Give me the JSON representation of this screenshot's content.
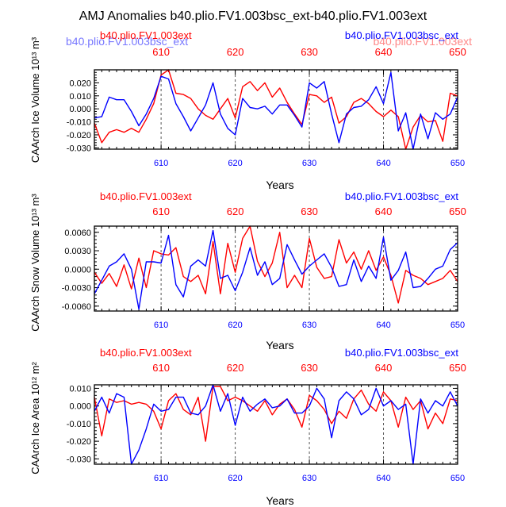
{
  "figure": {
    "title": "AMJ Anomalies b40.plio.FV1.003bsc_ext-b40.plio.FV1.003ext",
    "xlabel": "Years",
    "colors": {
      "series_a": "#ff0000",
      "series_b": "#0000ff",
      "axis": "#000000"
    }
  },
  "panel_0": {
    "ylabel": "CAArch Ice Volume 10¹³ m³",
    "legend_left": "b40.plio.FV1.003ext",
    "legend_right": "b40.plio.FV1.003bsc_ext",
    "ghost_left": "b40.plio.FV1.003bsc_ext",
    "ghost_right": "b40.plio.FV1.003ext"
  },
  "panel_1": {
    "ylabel": "CAArch Snow Volume 10¹³ m³",
    "legend_left": "b40.plio.FV1.003ext",
    "legend_right": "b40.plio.FV1.003bsc_ext"
  },
  "panel_2": {
    "ylabel": "CAArch Ice Area 10¹² m²",
    "legend_left": "b40.plio.FV1.003ext",
    "legend_right": "b40.plio.FV1.003bsc_ext"
  },
  "chart_data": [
    {
      "type": "line",
      "title": "AMJ Anomalies b40.plio.FV1.003bsc_ext-b40.plio.FV1.003ext",
      "xlabel": "Years",
      "ylabel": "CAArch Ice Volume 10¹³ m³",
      "xlim": [
        601,
        650
      ],
      "ylim": [
        -0.031,
        0.03
      ],
      "xticks": [
        610,
        620,
        630,
        640,
        650
      ],
      "yticks": [
        -0.03,
        -0.02,
        -0.01,
        0.0,
        0.01,
        0.02
      ],
      "ytick_labels": [
        "-0.030",
        "-0.020",
        "-0.010",
        "0.000",
        "0.010",
        "0.020"
      ],
      "vlines": [
        610,
        620,
        630,
        640
      ],
      "x": [
        601,
        602,
        603,
        604,
        605,
        606,
        607,
        608,
        609,
        610,
        611,
        612,
        613,
        614,
        615,
        616,
        617,
        618,
        619,
        620,
        621,
        622,
        623,
        624,
        625,
        626,
        627,
        628,
        629,
        630,
        631,
        632,
        633,
        634,
        635,
        636,
        637,
        638,
        639,
        640,
        641,
        642,
        643,
        644,
        645,
        646,
        647,
        648,
        649,
        650
      ],
      "series": [
        {
          "name": "b40.plio.FV1.003ext",
          "color": "#ff0000",
          "values": [
            -0.011,
            -0.026,
            -0.018,
            -0.016,
            -0.018,
            -0.015,
            -0.018,
            -0.008,
            0.004,
            0.026,
            0.03,
            0.012,
            0.011,
            0.008,
            0.0,
            -0.005,
            -0.008,
            0.0,
            0.008,
            -0.007,
            0.017,
            0.021,
            0.014,
            0.02,
            0.009,
            0.016,
            0.005,
            -0.004,
            -0.012,
            0.011,
            0.01,
            0.005,
            0.009,
            -0.011,
            -0.006,
            0.005,
            0.008,
            0.004,
            -0.002,
            -0.006,
            -0.001,
            -0.006,
            -0.031,
            -0.014,
            -0.005,
            -0.01,
            -0.009,
            -0.025,
            0.012,
            0.01
          ]
        },
        {
          "name": "b40.plio.FV1.003bsc_ext",
          "color": "#0000ff",
          "values": [
            -0.007,
            -0.006,
            0.009,
            0.007,
            0.007,
            -0.002,
            -0.013,
            -0.004,
            0.008,
            0.025,
            0.023,
            0.004,
            -0.006,
            -0.017,
            -0.007,
            0.003,
            0.02,
            -0.004,
            -0.015,
            -0.02,
            0.008,
            0.001,
            0.0,
            0.002,
            -0.004,
            0.003,
            0.003,
            -0.005,
            -0.014,
            0.02,
            0.016,
            0.021,
            -0.004,
            -0.026,
            -0.004,
            0.001,
            0.002,
            0.007,
            0.017,
            0.004,
            0.028,
            -0.017,
            -0.003,
            -0.031,
            -0.004,
            -0.023,
            -0.003,
            -0.008,
            -0.004,
            0.009
          ]
        }
      ]
    },
    {
      "type": "line",
      "xlabel": "Years",
      "ylabel": "CAArch Snow Volume 10¹³ m³",
      "xlim": [
        601,
        650
      ],
      "ylim": [
        -0.0068,
        0.007
      ],
      "xticks": [
        610,
        620,
        630,
        640,
        650
      ],
      "yticks": [
        -0.006,
        -0.003,
        0.0,
        0.003,
        0.006
      ],
      "ytick_labels": [
        "-0.0060",
        "-0.0030",
        "0.0000",
        "0.0030",
        "0.0060"
      ],
      "vlines": [
        610,
        620,
        630,
        640
      ],
      "x": [
        601,
        602,
        603,
        604,
        605,
        606,
        607,
        608,
        609,
        610,
        611,
        612,
        613,
        614,
        615,
        616,
        617,
        618,
        619,
        620,
        621,
        622,
        623,
        624,
        625,
        626,
        627,
        628,
        629,
        630,
        631,
        632,
        633,
        634,
        635,
        636,
        637,
        638,
        639,
        640,
        641,
        642,
        643,
        644,
        645,
        646,
        647,
        648,
        649,
        650
      ],
      "series": [
        {
          "name": "b40.plio.FV1.003ext",
          "color": "#ff0000",
          "values": [
            -0.0005,
            -0.0023,
            -0.0007,
            -0.0028,
            0.0007,
            -0.0032,
            0.0018,
            -0.003,
            0.003,
            0.0025,
            0.0023,
            0.0035,
            -0.0012,
            -0.002,
            -0.001,
            -0.004,
            0.0045,
            -0.004,
            0.0042,
            -0.0005,
            0.005,
            0.007,
            0.0013,
            -0.0012,
            0.001,
            0.006,
            -0.003,
            -0.001,
            -0.003,
            0.005,
            0.0003,
            -0.0015,
            -0.0012,
            0.0048,
            0.001,
            0.0028,
            0.0,
            0.003,
            -0.0002,
            0.002,
            -0.001,
            -0.0055,
            -0.0002,
            -0.001,
            -0.0015,
            -0.0025,
            -0.002,
            -0.0015,
            -0.0002,
            -0.002
          ]
        },
        {
          "name": "b40.plio.FV1.003bsc_ext",
          "color": "#0000ff",
          "values": [
            -0.004,
            -0.0018,
            0.0005,
            0.0012,
            0.0025,
            0.0,
            -0.0065,
            0.0012,
            0.0012,
            0.001,
            0.0055,
            -0.0025,
            -0.0045,
            0.0005,
            0.0015,
            0.0005,
            0.0063,
            -0.0015,
            -0.001,
            -0.0035,
            -0.0005,
            0.0035,
            -0.001,
            0.0012,
            -0.0025,
            -0.0015,
            0.004,
            0.0015,
            -0.0008,
            0.0005,
            0.0015,
            0.0025,
            0.0003,
            -0.0028,
            -0.0025,
            0.0015,
            -0.002,
            0.0005,
            -0.0015,
            0.0052,
            -0.0018,
            -0.0002,
            0.0028,
            -0.003,
            -0.0028,
            -0.0015,
            0.0,
            0.0005,
            0.0032,
            0.0043
          ]
        }
      ]
    },
    {
      "type": "line",
      "xlabel": "Years",
      "ylabel": "CAArch Ice Area 10¹² m²",
      "xlim": [
        601,
        650
      ],
      "ylim": [
        -0.033,
        0.012
      ],
      "xticks": [
        610,
        620,
        630,
        640,
        650
      ],
      "yticks": [
        -0.03,
        -0.02,
        -0.01,
        0.0,
        0.01
      ],
      "ytick_labels": [
        "-0.030",
        "-0.020",
        "-0.010",
        "0.000",
        "0.010"
      ],
      "vlines": [
        610,
        620,
        630,
        640
      ],
      "x": [
        601,
        602,
        603,
        604,
        605,
        606,
        607,
        608,
        609,
        610,
        611,
        612,
        613,
        614,
        615,
        616,
        617,
        618,
        619,
        620,
        621,
        622,
        623,
        624,
        625,
        626,
        627,
        628,
        629,
        630,
        631,
        632,
        633,
        634,
        635,
        636,
        637,
        638,
        639,
        640,
        641,
        642,
        643,
        644,
        645,
        646,
        647,
        648,
        649,
        650
      ],
      "series": [
        {
          "name": "b40.plio.FV1.003ext",
          "color": "#ff0000",
          "values": [
            0.005,
            -0.017,
            0.004,
            0.002,
            0.003,
            0.001,
            0.002,
            0.001,
            -0.003,
            -0.013,
            0.003,
            0.007,
            -0.002,
            -0.005,
            0.005,
            -0.02,
            0.011,
            0.011,
            0.003,
            0.005,
            0.003,
            0.0,
            -0.003,
            0.003,
            -0.005,
            0.001,
            0.004,
            -0.002,
            -0.012,
            0.006,
            0.003,
            -0.002,
            -0.01,
            -0.003,
            -0.007,
            0.004,
            0.009,
            0.001,
            -0.003,
            0.008,
            0.003,
            -0.012,
            0.005,
            -0.002,
            0.003,
            -0.013,
            -0.004,
            -0.01,
            0.004,
            0.003
          ]
        },
        {
          "name": "b40.plio.FV1.003bsc_ext",
          "color": "#0000ff",
          "values": [
            -0.003,
            0.005,
            -0.004,
            0.007,
            0.005,
            -0.033,
            -0.025,
            -0.013,
            0.001,
            -0.003,
            -0.002,
            0.005,
            0.005,
            -0.004,
            -0.005,
            0.0,
            0.012,
            -0.003,
            0.007,
            -0.011,
            0.005,
            -0.003,
            0.001,
            0.004,
            -0.001,
            0.0,
            0.004,
            -0.004,
            -0.004,
            0.0,
            0.01,
            0.004,
            -0.018,
            0.003,
            0.008,
            0.004,
            -0.005,
            -0.002,
            0.01,
            0.0,
            0.003,
            -0.002,
            0.001,
            -0.033,
            0.004,
            -0.004,
            0.003,
            0.0,
            0.008,
            0.0
          ]
        }
      ]
    }
  ]
}
